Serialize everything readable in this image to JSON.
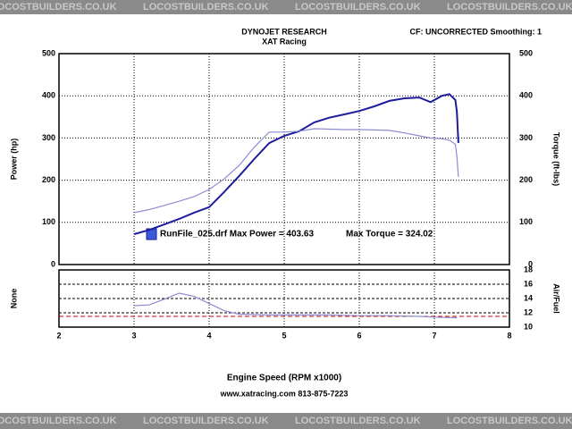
{
  "watermark": "LOCOSTBUILDERS.CO.UK",
  "header": {
    "title": "DYNOJET RESEARCH",
    "subtitle": "XAT Racing",
    "settings": "CF: UNCORRECTED  Smoothing: 1"
  },
  "x_label": "Engine Speed (RPM x1000)",
  "footer": "www.xatracing.com   813-875-7223",
  "chart_data": [
    {
      "type": "line",
      "y_label": "Power (hp)",
      "y2_label": "Torque (ft-lbs)",
      "annotations": [
        "RunFile_025.drf Max Power = 403.63",
        "Max Torque = 324.02"
      ],
      "x": [
        3.0,
        3.2,
        3.4,
        3.6,
        3.8,
        4.0,
        4.2,
        4.4,
        4.6,
        4.8,
        5.0,
        5.2,
        5.4,
        5.6,
        5.8,
        6.0,
        6.2,
        6.4,
        6.6,
        6.8,
        6.95,
        7.1,
        7.2,
        7.28,
        7.3,
        7.32
      ],
      "series": [
        {
          "name": "Power",
          "color": "#1c1c9c",
          "values": [
            72,
            82,
            95,
            108,
            123,
            136,
            172,
            210,
            250,
            288,
            305,
            316,
            337,
            348,
            356,
            364,
            375,
            388,
            394,
            396,
            385,
            400,
            404,
            390,
            362,
            288
          ]
        },
        {
          "name": "Torque",
          "color": "#8c8cd0",
          "axis": "y2",
          "values": [
            123,
            130,
            140,
            150,
            161,
            178,
            203,
            235,
            278,
            314,
            314,
            316,
            322,
            321,
            320,
            320,
            319,
            318,
            312,
            305,
            300,
            298,
            295,
            285,
            256,
            208
          ]
        }
      ],
      "xlim": [
        2,
        8
      ],
      "xticks": [
        2,
        3,
        4,
        5,
        6,
        7,
        8
      ],
      "ylim": [
        0,
        500
      ],
      "yticks": [
        0,
        100,
        200,
        300,
        400,
        500
      ],
      "y2lim": [
        0,
        500
      ],
      "y2ticks": [
        0,
        100,
        200,
        300,
        400,
        500
      ],
      "grid": true
    },
    {
      "type": "line",
      "y_label": "None",
      "y2_label": "Air/Fuel",
      "x": [
        3.0,
        3.2,
        3.4,
        3.6,
        3.8,
        4.0,
        4.2,
        4.4,
        4.8,
        5.2,
        5.6,
        6.0,
        6.4,
        6.8,
        7.0,
        7.3
      ],
      "series": [
        {
          "name": "Air/Fuel",
          "color": "#8c8cd0",
          "axis": "y2",
          "values": [
            13,
            13.1,
            13.9,
            14.75,
            14.3,
            13.3,
            12.3,
            11.8,
            11.7,
            11.7,
            11.7,
            11.6,
            11.6,
            11.5,
            11.4,
            11.3
          ]
        }
      ],
      "reference_line": {
        "value": 11.5,
        "color": "#cc0000"
      },
      "xlim": [
        2,
        8
      ],
      "xticks": [
        2,
        3,
        4,
        5,
        6,
        7,
        8
      ],
      "y2lim": [
        10,
        18
      ],
      "y2ticks": [
        10,
        12,
        14,
        16,
        18
      ],
      "grid": true
    }
  ]
}
